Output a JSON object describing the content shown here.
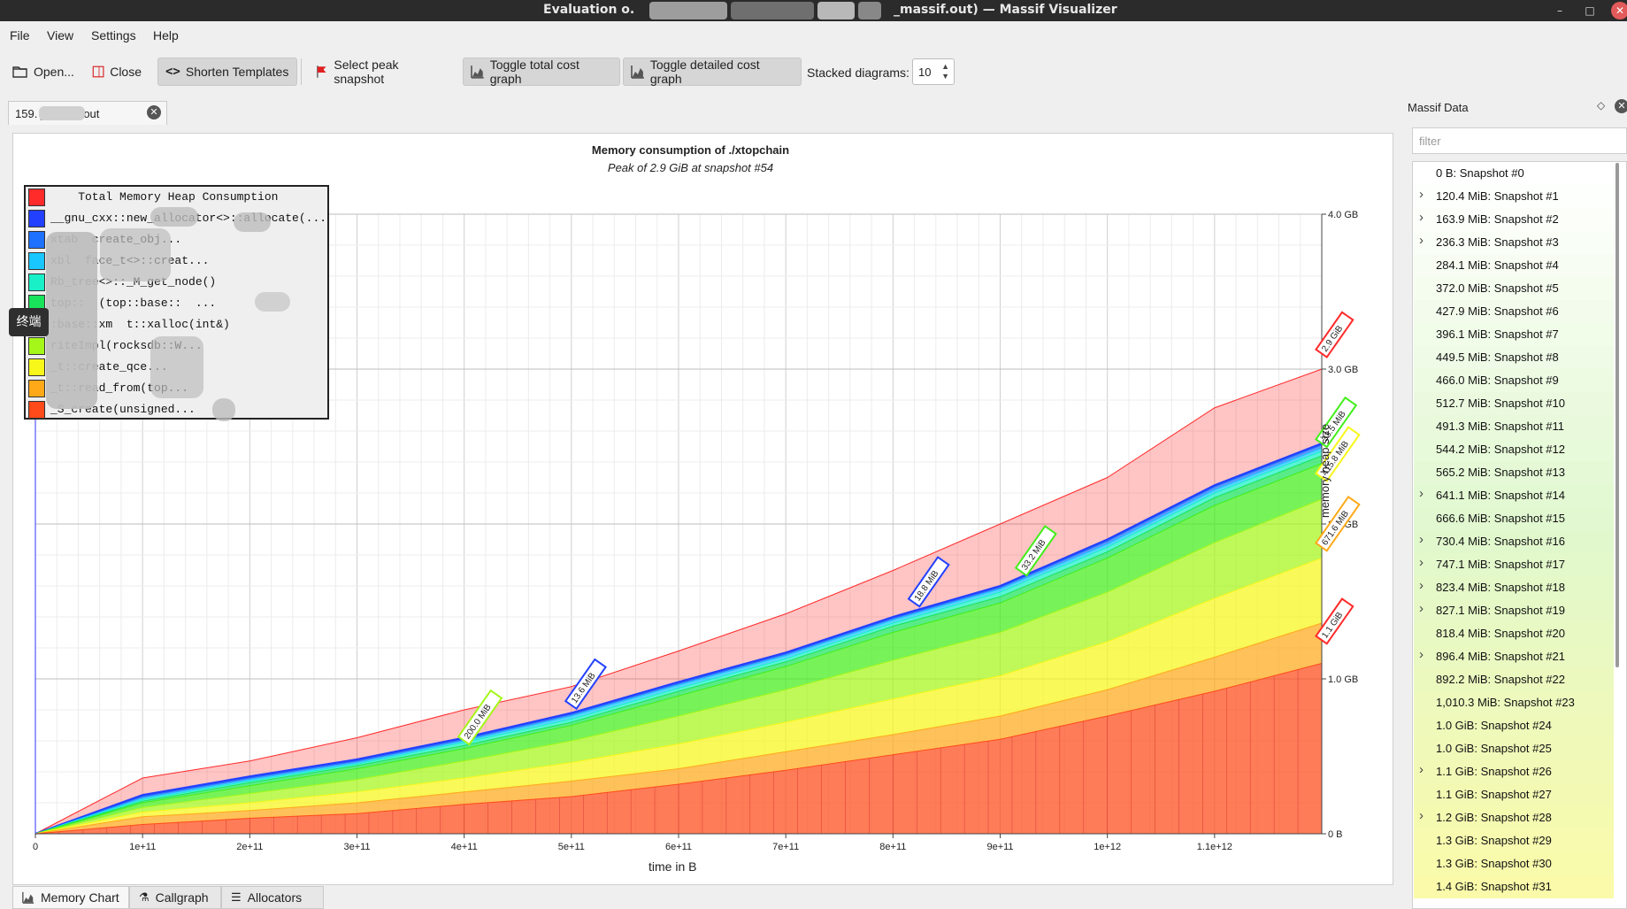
{
  "window": {
    "title_left": "Evaluation o.",
    "title_right": "_massif.out) — Massif Visualizer"
  },
  "menu": [
    "File",
    "View",
    "Settings",
    "Help"
  ],
  "toolbar": {
    "open_label": "Open...",
    "close_label": "Close",
    "shorten_label": "Shorten Templates",
    "peak_label": "Select peak snapshot",
    "toggle_total_label": "Toggle total cost graph",
    "toggle_detailed_label": "Toggle detailed cost graph",
    "stacked_label": "Stacked diagrams:",
    "stacked_value": "10"
  },
  "doc_tab": {
    "label": "159.        _massif.out"
  },
  "tooltip": "终端",
  "chart_data": {
    "type": "area",
    "title": "Memory consumption of ./xtopchain",
    "subtitle": "Peak of 2.9 GiB at snapshot #54",
    "xlabel": "time in B",
    "ylabel": "memory heap size",
    "xlim": [
      0,
      1200000000000.0
    ],
    "ylim": [
      0,
      4.0
    ],
    "x_ticks": [
      "0",
      "1e+11",
      "2e+11",
      "3e+11",
      "4e+11",
      "5e+11",
      "6e+11",
      "7e+11",
      "8e+11",
      "9e+11",
      "1e+12",
      "1.1e+12"
    ],
    "y_ticks": [
      "0 B",
      "1.0 GB",
      "2.0 GB",
      "3.0 GB",
      "4.0 GB"
    ],
    "grid": true,
    "legend_position": "top-left",
    "x": [
      0,
      100000000000.0,
      200000000000.0,
      300000000000.0,
      400000000000.0,
      500000000000.0,
      600000000000.0,
      700000000000.0,
      800000000000.0,
      900000000000.0,
      1000000000000.0,
      1100000000000.0,
      1200000000000.0
    ],
    "series": [
      {
        "name": "Total Memory Heap Consumption",
        "color": "#ff2a2a",
        "values": [
          0,
          0.36,
          0.47,
          0.62,
          0.8,
          0.95,
          1.18,
          1.42,
          1.7,
          2.0,
          2.3,
          2.75,
          3.0
        ]
      },
      {
        "name": "__gnu_cxx::new_allocator<>::allocate(...",
        "color": "#2240ff",
        "values": [
          0,
          0.25,
          0.37,
          0.48,
          0.62,
          0.78,
          0.98,
          1.17,
          1.4,
          1.6,
          1.9,
          2.25,
          2.52
        ]
      },
      {
        "name": "xtab  create_obj...",
        "color": "#1e70ff",
        "values": [
          0,
          0.24,
          0.36,
          0.47,
          0.61,
          0.77,
          0.97,
          1.16,
          1.39,
          1.59,
          1.89,
          2.24,
          2.51
        ]
      },
      {
        "name": "xbl  face_t<>::creat...",
        "color": "#19c6ff",
        "values": [
          0,
          0.23,
          0.35,
          0.46,
          0.6,
          0.76,
          0.96,
          1.15,
          1.38,
          1.58,
          1.87,
          2.22,
          2.49
        ]
      },
      {
        "name": "Rb_tree<>::_M_get_node()",
        "color": "#19f0c7",
        "values": [
          0,
          0.22,
          0.34,
          0.45,
          0.59,
          0.74,
          0.94,
          1.13,
          1.36,
          1.56,
          1.85,
          2.2,
          2.47
        ]
      },
      {
        "name": "top::  (top::base::  ...",
        "color": "#19e35a",
        "values": [
          0,
          0.21,
          0.33,
          0.44,
          0.57,
          0.72,
          0.92,
          1.11,
          1.34,
          1.53,
          1.82,
          2.17,
          2.44
        ]
      },
      {
        "name": ":base::xm  t::xalloc(int&)",
        "color": "#42ee19",
        "values": [
          0,
          0.2,
          0.31,
          0.42,
          0.55,
          0.7,
          0.89,
          1.08,
          1.3,
          1.49,
          1.78,
          2.12,
          2.39
        ]
      },
      {
        "name": "riteImpl(rocksdb::W...",
        "color": "#a5f719",
        "values": [
          0,
          0.17,
          0.26,
          0.35,
          0.47,
          0.6,
          0.76,
          0.93,
          1.12,
          1.3,
          1.56,
          1.88,
          2.16
        ]
      },
      {
        "name": "_t::create_qce...",
        "color": "#f7f719",
        "values": [
          0,
          0.14,
          0.2,
          0.27,
          0.36,
          0.46,
          0.58,
          0.72,
          0.87,
          1.02,
          1.24,
          1.52,
          1.78
        ]
      },
      {
        "name": "_t::read_from(top...",
        "color": "#ffa919",
        "values": [
          0,
          0.11,
          0.15,
          0.2,
          0.27,
          0.34,
          0.42,
          0.53,
          0.64,
          0.76,
          0.93,
          1.14,
          1.36
        ]
      },
      {
        "name": "_S_create(unsigned...",
        "color": "#ff4a19",
        "values": [
          0,
          0.06,
          0.1,
          0.13,
          0.19,
          0.24,
          0.32,
          0.41,
          0.51,
          0.61,
          0.76,
          0.92,
          1.1
        ]
      }
    ],
    "annotations": [
      {
        "text": "2.9 GiB",
        "color": "#ff2a2a",
        "x": 1200000000000.0,
        "y": 3.1
      },
      {
        "text": "33.5 MiB",
        "color": "#42ee19",
        "x": 1200000000000.0,
        "y": 2.52
      },
      {
        "text": "415.8 MiB",
        "color": "#f7f719",
        "x": 1200000000000.0,
        "y": 2.3
      },
      {
        "text": "671.6 MiB",
        "color": "#ffa919",
        "x": 1200000000000.0,
        "y": 1.85
      },
      {
        "text": "1.1 GiB",
        "color": "#ff2a2a",
        "x": 1200000000000.0,
        "y": 1.25
      },
      {
        "text": "200.0 MiB",
        "color": "#a5f719",
        "x": 400000000000.0,
        "y": 0.6
      },
      {
        "text": "13.6 MiB",
        "color": "#2240ff",
        "x": 500000000000.0,
        "y": 0.83
      },
      {
        "text": "18.8 MiB",
        "color": "#2240ff",
        "x": 820000000000.0,
        "y": 1.49
      },
      {
        "text": "33.2 MiB",
        "color": "#42ee19",
        "x": 920000000000.0,
        "y": 1.69
      }
    ]
  },
  "bottom_tabs": [
    "Memory Chart",
    "Callgraph",
    "Allocators"
  ],
  "side_panel": {
    "title": "Massif Data",
    "filter_placeholder": "filter",
    "snapshots": [
      {
        "label": "0 B: Snapshot #0",
        "expand": false
      },
      {
        "label": "120.4 MiB: Snapshot #1",
        "expand": true
      },
      {
        "label": "163.9 MiB: Snapshot #2",
        "expand": true
      },
      {
        "label": "236.3 MiB: Snapshot #3",
        "expand": true
      },
      {
        "label": "284.1 MiB: Snapshot #4",
        "expand": false
      },
      {
        "label": "372.0 MiB: Snapshot #5",
        "expand": false
      },
      {
        "label": "427.9 MiB: Snapshot #6",
        "expand": false
      },
      {
        "label": "396.1 MiB: Snapshot #7",
        "expand": false
      },
      {
        "label": "449.5 MiB: Snapshot #8",
        "expand": false
      },
      {
        "label": "466.0 MiB: Snapshot #9",
        "expand": false
      },
      {
        "label": "512.7 MiB: Snapshot #10",
        "expand": false
      },
      {
        "label": "491.3 MiB: Snapshot #11",
        "expand": false
      },
      {
        "label": "544.2 MiB: Snapshot #12",
        "expand": false
      },
      {
        "label": "565.2 MiB: Snapshot #13",
        "expand": false
      },
      {
        "label": "641.1 MiB: Snapshot #14",
        "expand": true
      },
      {
        "label": "666.6 MiB: Snapshot #15",
        "expand": false
      },
      {
        "label": "730.4 MiB: Snapshot #16",
        "expand": true
      },
      {
        "label": "747.1 MiB: Snapshot #17",
        "expand": true
      },
      {
        "label": "823.4 MiB: Snapshot #18",
        "expand": true
      },
      {
        "label": "827.1 MiB: Snapshot #19",
        "expand": true
      },
      {
        "label": "818.4 MiB: Snapshot #20",
        "expand": false
      },
      {
        "label": "896.4 MiB: Snapshot #21",
        "expand": true
      },
      {
        "label": "892.2 MiB: Snapshot #22",
        "expand": false
      },
      {
        "label": "1,010.3 MiB: Snapshot #23",
        "expand": false
      },
      {
        "label": "1.0 GiB: Snapshot #24",
        "expand": false
      },
      {
        "label": "1.0 GiB: Snapshot #25",
        "expand": false
      },
      {
        "label": "1.1 GiB: Snapshot #26",
        "expand": true
      },
      {
        "label": "1.1 GiB: Snapshot #27",
        "expand": false
      },
      {
        "label": "1.2 GiB: Snapshot #28",
        "expand": true
      },
      {
        "label": "1.3 GiB: Snapshot #29",
        "expand": false
      },
      {
        "label": "1.3 GiB: Snapshot #30",
        "expand": false
      },
      {
        "label": "1.4 GiB: Snapshot #31",
        "expand": false
      }
    ]
  }
}
